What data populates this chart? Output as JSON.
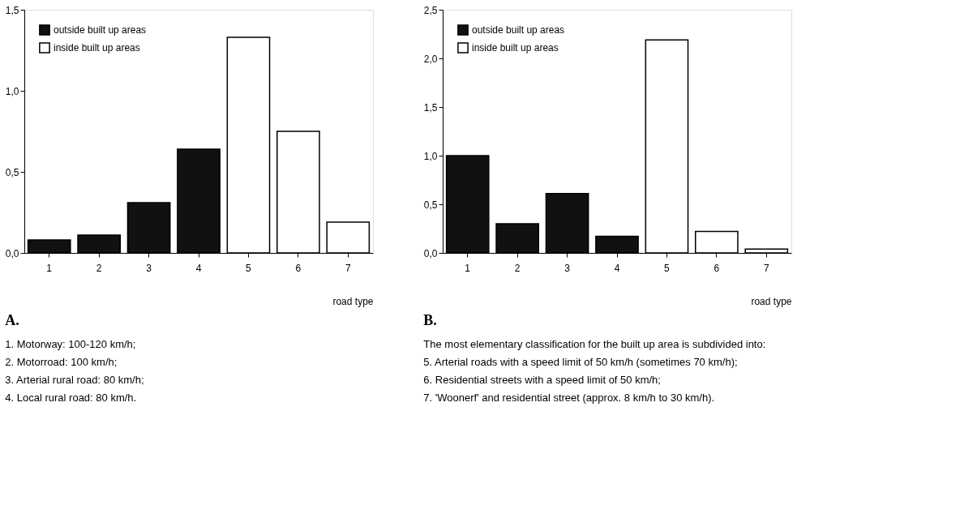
{
  "chart_data": [
    {
      "type": "bar",
      "title": "A.",
      "xlabel": "road type",
      "categories": [
        "1",
        "2",
        "3",
        "4",
        "5",
        "6",
        "7"
      ],
      "series": [
        {
          "name": "outside built up areas",
          "color": "#111111",
          "values": [
            0.08,
            0.11,
            0.31,
            0.64,
            null,
            null,
            null
          ]
        },
        {
          "name": "inside built up areas",
          "color": "#ffffff",
          "values": [
            null,
            null,
            null,
            null,
            1.33,
            0.75,
            0.19
          ]
        }
      ],
      "ylim": [
        0,
        1.5
      ],
      "yticks": [
        {
          "value": 0,
          "label": "0,0"
        },
        {
          "value": 0.5,
          "label": "0,5"
        },
        {
          "value": 1,
          "label": "1,0"
        },
        {
          "value": 1.5,
          "label": "1,5"
        }
      ],
      "grid": false,
      "legend": "top left",
      "annotations": [
        "1. Motorway: 100-120 km/h;",
        "2. Motorroad: 100 km/h;",
        "3. Arterial rural road: 80 km/h;",
        "4. Local rural road: 80 km/h."
      ]
    },
    {
      "type": "bar",
      "title": "B.",
      "xlabel": "road type",
      "categories": [
        "1",
        "2",
        "3",
        "4",
        "5",
        "6",
        "7"
      ],
      "series": [
        {
          "name": "outside built up areas",
          "color": "#111111",
          "values": [
            1.0,
            0.3,
            0.61,
            0.17,
            null,
            null,
            null
          ]
        },
        {
          "name": "inside built up areas",
          "color": "#ffffff",
          "values": [
            null,
            null,
            null,
            null,
            2.19,
            0.22,
            0.04
          ]
        }
      ],
      "ylim": [
        0,
        2.5
      ],
      "yticks": [
        {
          "value": 0,
          "label": "0,0"
        },
        {
          "value": 0.5,
          "label": "0,5"
        },
        {
          "value": 1,
          "label": "1,0"
        },
        {
          "value": 1.5,
          "label": "1,5"
        },
        {
          "value": 2,
          "label": "2,0"
        },
        {
          "value": 2.5,
          "label": "2,5"
        }
      ],
      "grid": false,
      "legend": "top left",
      "annotations": [
        "The most elementary classification for the built up area is subdivided into:",
        "5. Arterial roads with a speed limit of 50 km/h (sometimes 70 km/h);",
        "6. Residential streets with a speed limit of 50 km/h;",
        "7. 'Woonerf' and residential street (approx. 8 km/h to 30 km/h)."
      ]
    }
  ]
}
